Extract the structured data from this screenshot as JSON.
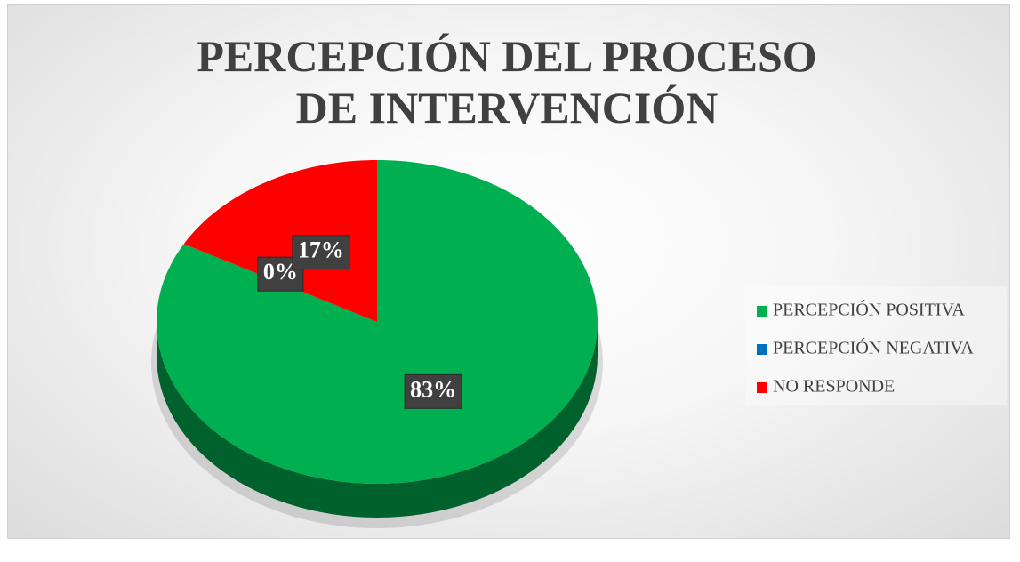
{
  "chart_data": {
    "type": "pie",
    "title": "PERCEPCIÓN DEL PROCESO DE INTERVENCIÓN",
    "categories": [
      "PERCEPCIÓN POSITIVA",
      "PERCEPCIÓN NEGATIVA",
      "NO RESPONDE"
    ],
    "values": [
      83,
      0,
      17
    ],
    "value_labels": [
      "83%",
      "0%",
      "17%"
    ],
    "colors": [
      "#00b050",
      "#0070c0",
      "#ff0000"
    ],
    "legend": "right"
  }
}
